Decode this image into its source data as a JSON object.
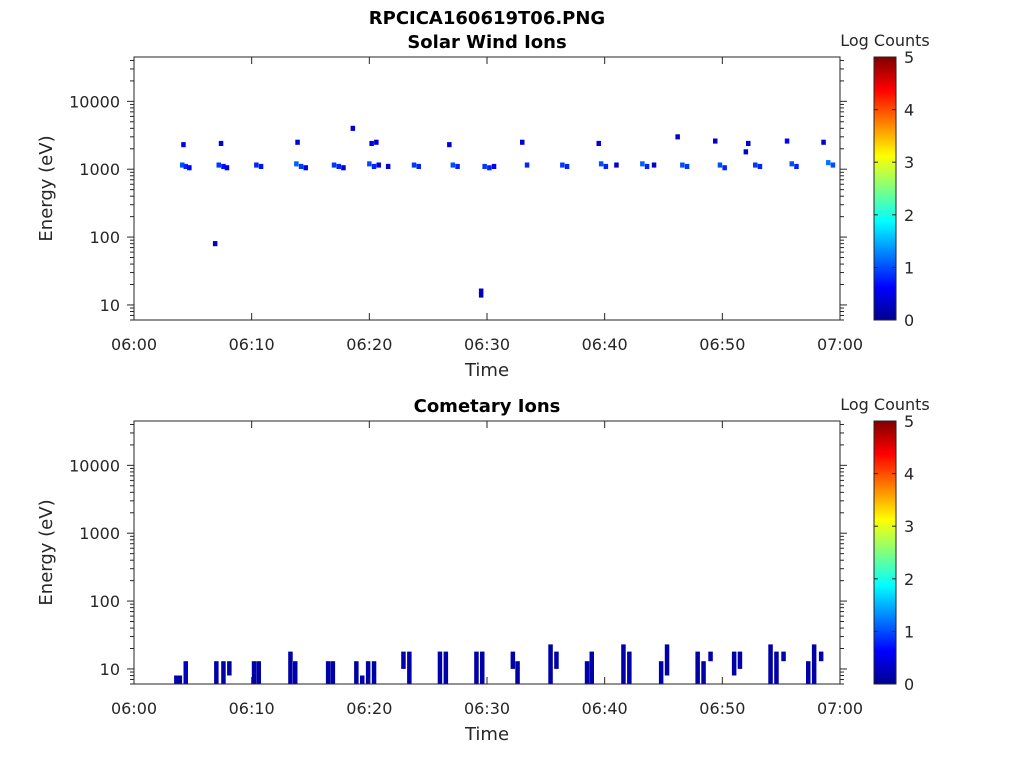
{
  "figure_title": "RPCICA160619T06.PNG",
  "colors": {
    "axis": "#262626"
  },
  "chart_data": [
    {
      "type": "heatmap",
      "title": "Solar Wind Ions",
      "xlabel": "Time",
      "ylabel": "Energy (eV)",
      "x_ticks": [
        "06:00",
        "06:10",
        "06:20",
        "06:30",
        "06:40",
        "06:50",
        "07:00"
      ],
      "xlim": [
        "06:00",
        "07:00"
      ],
      "y_scale": "log",
      "ylim": [
        6,
        45000
      ],
      "y_ticks": [
        "10",
        "100",
        "1000",
        "10000"
      ],
      "y_tick_values": [
        10,
        100,
        1000,
        10000
      ],
      "colorbar": {
        "label": "Log Counts",
        "range": [
          0,
          5
        ],
        "ticks": [
          "0",
          "1",
          "2",
          "3",
          "4",
          "5"
        ],
        "colormap": "jet"
      },
      "grid": false,
      "cells": [
        {
          "t": 4.1,
          "e": 1150,
          "v": 1.0
        },
        {
          "t": 4.4,
          "e": 1100,
          "v": 0.8
        },
        {
          "t": 4.7,
          "e": 1050,
          "v": 0.6
        },
        {
          "t": 4.2,
          "e": 2300,
          "v": 0.5
        },
        {
          "t": 7.2,
          "e": 1150,
          "v": 0.9
        },
        {
          "t": 7.6,
          "e": 1100,
          "v": 0.7
        },
        {
          "t": 7.9,
          "e": 1050,
          "v": 0.5
        },
        {
          "t": 7.4,
          "e": 2400,
          "v": 0.5
        },
        {
          "t": 10.4,
          "e": 1150,
          "v": 0.8
        },
        {
          "t": 10.8,
          "e": 1100,
          "v": 0.7
        },
        {
          "t": 13.8,
          "e": 1200,
          "v": 1.1
        },
        {
          "t": 14.2,
          "e": 1100,
          "v": 0.9
        },
        {
          "t": 14.6,
          "e": 1050,
          "v": 0.5
        },
        {
          "t": 13.9,
          "e": 2500,
          "v": 0.4
        },
        {
          "t": 17.0,
          "e": 1150,
          "v": 0.9
        },
        {
          "t": 17.4,
          "e": 1100,
          "v": 0.8
        },
        {
          "t": 17.8,
          "e": 1050,
          "v": 0.4
        },
        {
          "t": 18.6,
          "e": 4000,
          "v": 0.4
        },
        {
          "t": 20.0,
          "e": 1200,
          "v": 1.0
        },
        {
          "t": 20.4,
          "e": 1100,
          "v": 0.8
        },
        {
          "t": 20.8,
          "e": 1150,
          "v": 0.5
        },
        {
          "t": 21.6,
          "e": 1100,
          "v": 0.4
        },
        {
          "t": 20.2,
          "e": 2400,
          "v": 0.5
        },
        {
          "t": 20.6,
          "e": 2500,
          "v": 0.4
        },
        {
          "t": 23.8,
          "e": 1150,
          "v": 0.9
        },
        {
          "t": 24.2,
          "e": 1100,
          "v": 0.8
        },
        {
          "t": 26.8,
          "e": 2300,
          "v": 0.4
        },
        {
          "t": 27.1,
          "e": 1150,
          "v": 1.0
        },
        {
          "t": 27.5,
          "e": 1100,
          "v": 0.8
        },
        {
          "t": 29.8,
          "e": 1100,
          "v": 0.9
        },
        {
          "t": 30.2,
          "e": 1050,
          "v": 0.8
        },
        {
          "t": 30.6,
          "e": 1100,
          "v": 0.5
        },
        {
          "t": 33.0,
          "e": 2500,
          "v": 0.4
        },
        {
          "t": 33.4,
          "e": 1150,
          "v": 0.8
        },
        {
          "t": 36.4,
          "e": 1150,
          "v": 0.9
        },
        {
          "t": 36.8,
          "e": 1100,
          "v": 0.8
        },
        {
          "t": 39.5,
          "e": 2400,
          "v": 0.4
        },
        {
          "t": 39.7,
          "e": 1200,
          "v": 1.0
        },
        {
          "t": 40.1,
          "e": 1100,
          "v": 0.8
        },
        {
          "t": 41.0,
          "e": 1150,
          "v": 0.4
        },
        {
          "t": 43.2,
          "e": 1200,
          "v": 1.1
        },
        {
          "t": 43.6,
          "e": 1100,
          "v": 0.8
        },
        {
          "t": 44.2,
          "e": 1150,
          "v": 0.4
        },
        {
          "t": 46.2,
          "e": 3000,
          "v": 0.4
        },
        {
          "t": 46.6,
          "e": 1150,
          "v": 1.0
        },
        {
          "t": 47.0,
          "e": 1100,
          "v": 0.9
        },
        {
          "t": 49.4,
          "e": 2600,
          "v": 0.4
        },
        {
          "t": 49.8,
          "e": 1150,
          "v": 1.0
        },
        {
          "t": 50.2,
          "e": 1050,
          "v": 0.8
        },
        {
          "t": 52.0,
          "e": 1800,
          "v": 0.4
        },
        {
          "t": 52.2,
          "e": 2400,
          "v": 0.4
        },
        {
          "t": 52.8,
          "e": 1150,
          "v": 0.9
        },
        {
          "t": 53.2,
          "e": 1100,
          "v": 0.8
        },
        {
          "t": 55.5,
          "e": 2600,
          "v": 0.6
        },
        {
          "t": 55.9,
          "e": 1200,
          "v": 1.0
        },
        {
          "t": 56.3,
          "e": 1100,
          "v": 0.8
        },
        {
          "t": 58.6,
          "e": 2500,
          "v": 0.4
        },
        {
          "t": 59.0,
          "e": 1250,
          "v": 1.2
        },
        {
          "t": 59.4,
          "e": 1150,
          "v": 1.0
        },
        {
          "t": 6.9,
          "e": 80,
          "v": 0.3
        },
        {
          "t": 29.5,
          "e": 16,
          "v": 0.3
        },
        {
          "t": 29.5,
          "e": 14,
          "v": 0.3
        }
      ]
    },
    {
      "type": "heatmap",
      "title": "Cometary Ions",
      "xlabel": "Time",
      "ylabel": "Energy (eV)",
      "x_ticks": [
        "06:00",
        "06:10",
        "06:20",
        "06:30",
        "06:40",
        "06:50",
        "07:00"
      ],
      "xlim": [
        "06:00",
        "07:00"
      ],
      "y_scale": "log",
      "ylim": [
        6,
        45000
      ],
      "y_ticks": [
        "10",
        "100",
        "1000",
        "10000"
      ],
      "y_tick_values": [
        10,
        100,
        1000,
        10000
      ],
      "colorbar": {
        "label": "Log Counts",
        "range": [
          0,
          5
        ],
        "ticks": [
          "0",
          "1",
          "2",
          "3",
          "4",
          "5"
        ],
        "colormap": "jet"
      },
      "grid": false,
      "columns": [
        {
          "t": 3.6,
          "e_lo": 6,
          "e_hi": 8,
          "v": 0.2
        },
        {
          "t": 3.9,
          "e_lo": 6,
          "e_hi": 8,
          "v": 0.2
        },
        {
          "t": 4.4,
          "e_lo": 6,
          "e_hi": 13,
          "v": 0.3
        },
        {
          "t": 7.0,
          "e_lo": 6,
          "e_hi": 13,
          "v": 0.2
        },
        {
          "t": 7.6,
          "e_lo": 6,
          "e_hi": 13,
          "v": 0.2
        },
        {
          "t": 8.1,
          "e_lo": 8,
          "e_hi": 13,
          "v": 0.2
        },
        {
          "t": 10.2,
          "e_lo": 6,
          "e_hi": 13,
          "v": 0.2
        },
        {
          "t": 10.6,
          "e_lo": 6,
          "e_hi": 13,
          "v": 0.2
        },
        {
          "t": 13.3,
          "e_lo": 6,
          "e_hi": 18,
          "v": 0.2
        },
        {
          "t": 13.7,
          "e_lo": 6,
          "e_hi": 13,
          "v": 0.2
        },
        {
          "t": 16.5,
          "e_lo": 6,
          "e_hi": 13,
          "v": 0.2
        },
        {
          "t": 16.9,
          "e_lo": 6,
          "e_hi": 13,
          "v": 0.2
        },
        {
          "t": 18.9,
          "e_lo": 6,
          "e_hi": 13,
          "v": 0.2
        },
        {
          "t": 19.4,
          "e_lo": 6,
          "e_hi": 8,
          "v": 0.2
        },
        {
          "t": 19.9,
          "e_lo": 6,
          "e_hi": 13,
          "v": 0.2
        },
        {
          "t": 20.4,
          "e_lo": 6,
          "e_hi": 13,
          "v": 0.2
        },
        {
          "t": 22.9,
          "e_lo": 10,
          "e_hi": 18,
          "v": 0.2
        },
        {
          "t": 23.4,
          "e_lo": 6,
          "e_hi": 18,
          "v": 0.2
        },
        {
          "t": 26.0,
          "e_lo": 6,
          "e_hi": 18,
          "v": 0.2
        },
        {
          "t": 26.5,
          "e_lo": 6,
          "e_hi": 18,
          "v": 0.2
        },
        {
          "t": 29.1,
          "e_lo": 6,
          "e_hi": 18,
          "v": 0.2
        },
        {
          "t": 29.6,
          "e_lo": 6,
          "e_hi": 18,
          "v": 0.2
        },
        {
          "t": 32.2,
          "e_lo": 10,
          "e_hi": 18,
          "v": 0.2
        },
        {
          "t": 32.6,
          "e_lo": 6,
          "e_hi": 13,
          "v": 0.2
        },
        {
          "t": 35.4,
          "e_lo": 6,
          "e_hi": 23,
          "v": 0.2
        },
        {
          "t": 35.9,
          "e_lo": 10,
          "e_hi": 18,
          "v": 0.2
        },
        {
          "t": 38.5,
          "e_lo": 6,
          "e_hi": 13,
          "v": 0.2
        },
        {
          "t": 38.9,
          "e_lo": 6,
          "e_hi": 18,
          "v": 0.2
        },
        {
          "t": 41.6,
          "e_lo": 6,
          "e_hi": 23,
          "v": 0.2
        },
        {
          "t": 42.1,
          "e_lo": 6,
          "e_hi": 18,
          "v": 0.2
        },
        {
          "t": 44.8,
          "e_lo": 6,
          "e_hi": 13,
          "v": 0.2
        },
        {
          "t": 45.3,
          "e_lo": 8,
          "e_hi": 23,
          "v": 0.2
        },
        {
          "t": 47.9,
          "e_lo": 6,
          "e_hi": 18,
          "v": 0.2
        },
        {
          "t": 48.4,
          "e_lo": 6,
          "e_hi": 13,
          "v": 0.2
        },
        {
          "t": 49.0,
          "e_lo": 13,
          "e_hi": 18,
          "v": 0.2
        },
        {
          "t": 51.0,
          "e_lo": 8,
          "e_hi": 18,
          "v": 0.2
        },
        {
          "t": 51.5,
          "e_lo": 10,
          "e_hi": 18,
          "v": 0.2
        },
        {
          "t": 54.1,
          "e_lo": 6,
          "e_hi": 23,
          "v": 0.2
        },
        {
          "t": 54.6,
          "e_lo": 6,
          "e_hi": 18,
          "v": 0.2
        },
        {
          "t": 55.2,
          "e_lo": 13,
          "e_hi": 18,
          "v": 0.2
        },
        {
          "t": 57.3,
          "e_lo": 6,
          "e_hi": 13,
          "v": 0.2
        },
        {
          "t": 57.8,
          "e_lo": 6,
          "e_hi": 23,
          "v": 0.2
        },
        {
          "t": 58.4,
          "e_lo": 13,
          "e_hi": 18,
          "v": 0.2
        }
      ]
    }
  ]
}
